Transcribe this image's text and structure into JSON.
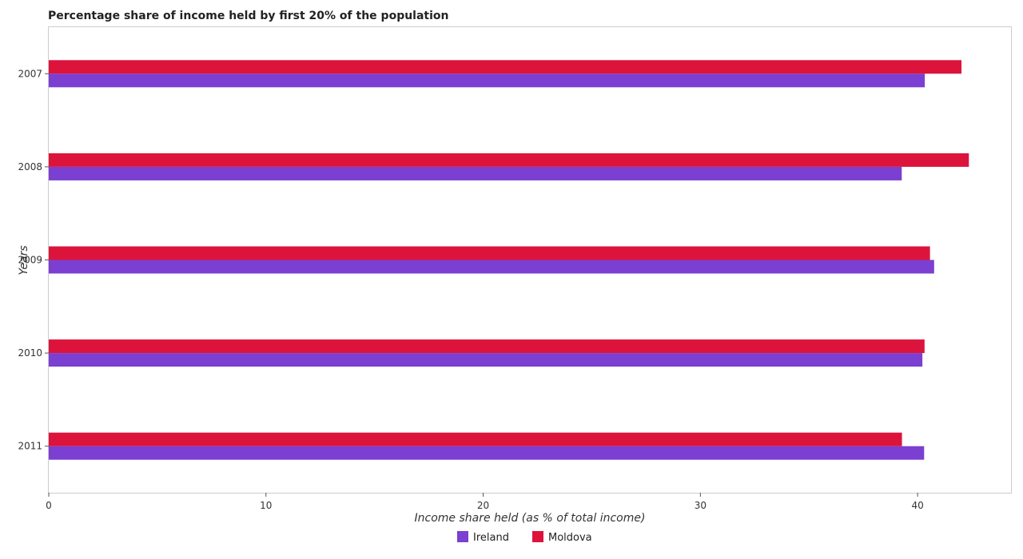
{
  "chart_data": {
    "type": "bar",
    "orientation": "horizontal",
    "title": "Percentage share of income held by first 20% of the population",
    "xlabel": "Income share held (as % of total income)",
    "ylabel": "Years",
    "categories": [
      "2007",
      "2008",
      "2009",
      "2010",
      "2011"
    ],
    "series": [
      {
        "name": "Ireland",
        "color": "#7b3fd1",
        "values": [
          40.33,
          39.27,
          40.76,
          40.22,
          40.3
        ]
      },
      {
        "name": "Moldova",
        "color": "#dc143c",
        "values": [
          42.02,
          42.36,
          40.57,
          40.32,
          39.28
        ]
      }
    ],
    "xlim": [
      0,
      44.3
    ],
    "xticks": [
      0,
      10,
      20,
      30,
      40
    ],
    "grid": false,
    "legend_position": "bottom"
  }
}
